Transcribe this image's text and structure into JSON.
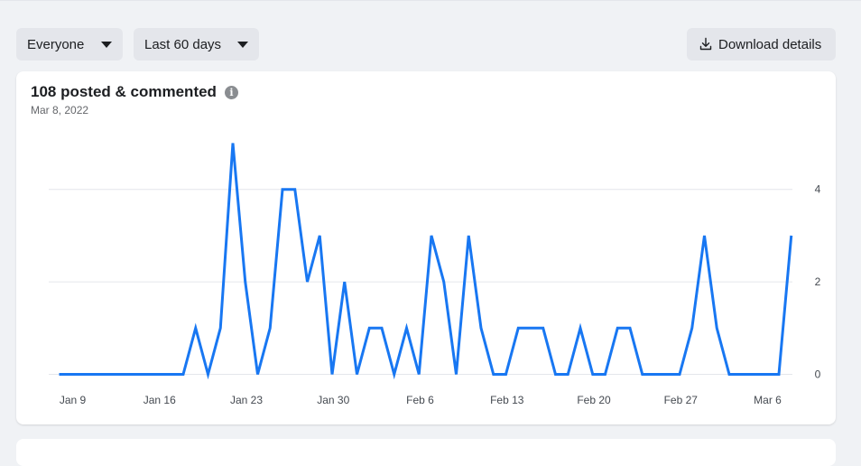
{
  "toolbar": {
    "audience": "Everyone",
    "range": "Last 60 days",
    "download_label": "Download details"
  },
  "card": {
    "title": "108 posted & commented",
    "date": "Mar 8, 2022"
  },
  "colors": {
    "line": "#1877f2",
    "grid": "#e4e6eb"
  },
  "icons": {
    "audience_caret": "caret-down-icon",
    "range_caret": "caret-down-icon",
    "download": "download-icon",
    "info": "info-icon"
  },
  "chart_data": {
    "type": "line",
    "title": "108 posted & commented",
    "subtitle": "Mar 8, 2022",
    "x_tick_labels": [
      "Jan 9",
      "Jan 16",
      "Jan 23",
      "Jan 30",
      "Feb 6",
      "Feb 13",
      "Feb 20",
      "Feb 27",
      "Mar 6"
    ],
    "y_ticks": [
      0,
      2,
      4
    ],
    "ylim": [
      0,
      5
    ],
    "y_axis_side": "right",
    "grid": true,
    "x_start": "Jan 9",
    "x_end": "Mar 8",
    "series": [
      {
        "values": [
          0,
          0,
          0,
          0,
          0,
          0,
          0,
          0,
          0,
          0,
          0,
          1,
          0,
          1,
          5,
          2,
          0,
          1,
          4,
          4,
          2,
          3,
          0,
          2,
          0,
          1,
          1,
          0,
          1,
          0,
          3,
          2,
          0,
          3,
          1,
          0,
          0,
          1,
          1,
          1,
          0,
          0,
          1,
          0,
          0,
          1,
          1,
          0,
          0,
          0,
          0,
          1,
          3,
          1,
          0,
          0,
          0,
          0,
          0,
          3
        ]
      }
    ]
  }
}
